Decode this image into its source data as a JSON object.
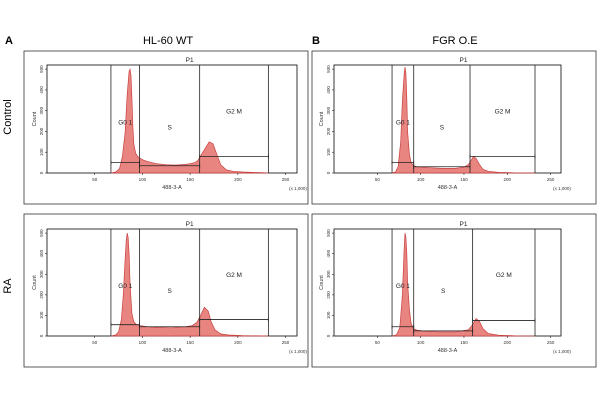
{
  "figure": {
    "panel_letters": [
      "A",
      "B"
    ],
    "column_titles": [
      "HL-60 WT",
      "FGR O.E"
    ],
    "row_titles": [
      "Control",
      "RA"
    ]
  },
  "chart_data": [
    {
      "id": "wt-control",
      "column": "HL-60 WT",
      "row": "Control",
      "type": "area",
      "xlabel": "488-3-A",
      "ylabel": "Count",
      "x_multiplier": "(x 1,000)",
      "xlim": [
        0,
        262
      ],
      "ylim": [
        0,
        520
      ],
      "xticks": [
        "50",
        "100",
        "150",
        "200",
        "250"
      ],
      "yticks": [
        "0",
        "100",
        "200",
        "300",
        "400",
        "500"
      ],
      "gates": {
        "P1": [
          67,
          232
        ],
        "G0 1": [
          67,
          97
        ],
        "S": [
          97,
          160
        ],
        "G2 M": [
          160,
          232
        ]
      },
      "gate_labels": [
        "P1",
        "G0 1",
        "S",
        "G2 M"
      ],
      "gate_levels": {
        "G0 1": 50,
        "S": 35,
        "G2 M": 80
      },
      "series": [
        {
          "x": [
            67,
            72,
            76,
            79,
            82,
            84,
            86,
            87,
            88,
            89,
            90,
            91,
            93,
            95,
            98,
            102,
            108,
            115,
            125,
            135,
            145,
            150,
            155,
            158,
            162,
            166,
            170,
            174,
            178,
            182,
            188,
            195,
            205,
            215,
            225,
            232
          ],
          "y": [
            0,
            5,
            20,
            80,
            200,
            380,
            490,
            500,
            470,
            360,
            220,
            140,
            95,
            80,
            70,
            60,
            52,
            45,
            40,
            38,
            42,
            45,
            50,
            60,
            90,
            120,
            150,
            140,
            90,
            40,
            15,
            8,
            5,
            3,
            2,
            0
          ]
        }
      ]
    },
    {
      "id": "fgr-control",
      "column": "FGR O.E",
      "row": "Control",
      "type": "area",
      "xlabel": "488-3-A",
      "ylabel": "Count",
      "x_multiplier": "(x 1,000)",
      "xlim": [
        0,
        262
      ],
      "ylim": [
        0,
        520
      ],
      "xticks": [
        "50",
        "100",
        "150",
        "200",
        "250"
      ],
      "yticks": [
        "0",
        "100",
        "200",
        "300",
        "400",
        "500"
      ],
      "gates": {
        "P1": [
          67,
          232
        ],
        "G0 1": [
          67,
          92
        ],
        "S": [
          92,
          157
        ],
        "G2 M": [
          157,
          232
        ]
      },
      "gate_labels": [
        "P1",
        "G0 1",
        "S",
        "G2 M"
      ],
      "gate_levels": {
        "G0 1": 50,
        "S": 30,
        "G2 M": 80
      },
      "series": [
        {
          "x": [
            67,
            71,
            74,
            77,
            79,
            81,
            82,
            83,
            84,
            85,
            87,
            89,
            92,
            96,
            102,
            112,
            125,
            140,
            150,
            155,
            158,
            161,
            164,
            168,
            172,
            178,
            190,
            210,
            232
          ],
          "y": [
            0,
            5,
            30,
            150,
            350,
            480,
            510,
            480,
            360,
            200,
            90,
            50,
            35,
            30,
            28,
            25,
            22,
            22,
            28,
            40,
            60,
            80,
            70,
            40,
            18,
            8,
            3,
            1,
            0
          ]
        }
      ]
    },
    {
      "id": "wt-ra",
      "column": "HL-60 WT",
      "row": "RA",
      "type": "area",
      "xlabel": "488-3-A",
      "ylabel": "Count",
      "x_multiplier": "(x 1,000)",
      "xlim": [
        0,
        262
      ],
      "ylim": [
        0,
        520
      ],
      "xticks": [
        "50",
        "100",
        "150",
        "200",
        "250"
      ],
      "yticks": [
        "0",
        "100",
        "200",
        "300",
        "400",
        "500"
      ],
      "gates": {
        "P1": [
          67,
          232
        ],
        "G0 1": [
          67,
          97
        ],
        "S": [
          97,
          160
        ],
        "G2 M": [
          160,
          232
        ]
      },
      "gate_labels": [
        "P1",
        "G0 1",
        "S",
        "G2 M"
      ],
      "gate_levels": {
        "G0 1": 55,
        "S": 45,
        "G2 M": 80
      },
      "series": [
        {
          "x": [
            67,
            72,
            75,
            78,
            80,
            82,
            83,
            84,
            85,
            86,
            87,
            89,
            91,
            94,
            98,
            105,
            115,
            130,
            145,
            152,
            157,
            161,
            165,
            169,
            172,
            176,
            182,
            190,
            205,
            232
          ],
          "y": [
            0,
            5,
            20,
            80,
            200,
            380,
            460,
            500,
            480,
            400,
            260,
            110,
            70,
            55,
            50,
            45,
            42,
            40,
            45,
            50,
            65,
            100,
            140,
            120,
            70,
            30,
            10,
            5,
            2,
            0
          ]
        }
      ]
    },
    {
      "id": "fgr-ra",
      "column": "FGR O.E",
      "row": "RA",
      "type": "area",
      "xlabel": "488-3-A",
      "ylabel": "Count",
      "x_multiplier": "(x 1,000)",
      "xlim": [
        0,
        262
      ],
      "ylim": [
        0,
        520
      ],
      "xticks": [
        "50",
        "100",
        "150",
        "200",
        "250"
      ],
      "yticks": [
        "0",
        "100",
        "200",
        "300",
        "400",
        "500"
      ],
      "gates": {
        "P1": [
          67,
          232
        ],
        "G0 1": [
          67,
          92
        ],
        "S": [
          92,
          160
        ],
        "G2 M": [
          160,
          232
        ]
      },
      "gate_labels": [
        "P1",
        "G0 1",
        "S",
        "G2 M"
      ],
      "gate_levels": {
        "G0 1": 45,
        "S": 25,
        "G2 M": 75
      },
      "series": [
        {
          "x": [
            67,
            72,
            76,
            79,
            81,
            82,
            83,
            84,
            85,
            87,
            89,
            92,
            96,
            105,
            120,
            140,
            155,
            160,
            164,
            168,
            172,
            178,
            190,
            210,
            232
          ],
          "y": [
            0,
            5,
            40,
            200,
            430,
            500,
            480,
            400,
            260,
            130,
            60,
            35,
            28,
            24,
            20,
            20,
            30,
            55,
            85,
            70,
            35,
            12,
            4,
            1,
            0
          ]
        }
      ]
    }
  ]
}
